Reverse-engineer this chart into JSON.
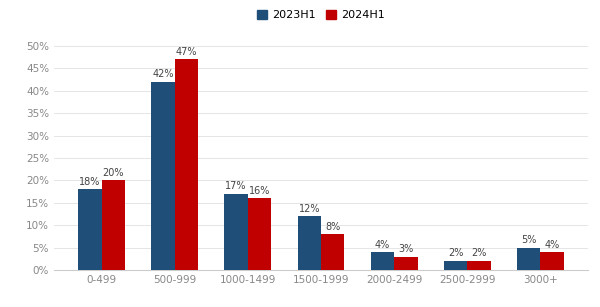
{
  "categories": [
    "0-499",
    "500-999",
    "1000-1499",
    "1500-1999",
    "2000-2499",
    "2500-2999",
    "3000+"
  ],
  "series_2023": [
    18,
    42,
    17,
    12,
    4,
    2,
    5
  ],
  "series_2024": [
    20,
    47,
    16,
    8,
    3,
    2,
    4
  ],
  "color_2023": "#1f4e79",
  "color_2024": "#c00000",
  "legend_2023": "2023H1",
  "legend_2024": "2024H1",
  "ylim": [
    0,
    52
  ],
  "yticks": [
    0,
    5,
    10,
    15,
    20,
    25,
    30,
    35,
    40,
    45,
    50
  ],
  "ytick_labels": [
    "0%",
    "5%",
    "10%",
    "15%",
    "20%",
    "25%",
    "30%",
    "35%",
    "40%",
    "45%",
    "50%"
  ],
  "bar_width": 0.32,
  "background_color": "#ffffff",
  "label_fontsize": 7.0,
  "axis_fontsize": 7.5,
  "legend_fontsize": 8,
  "tick_color": "#888888"
}
